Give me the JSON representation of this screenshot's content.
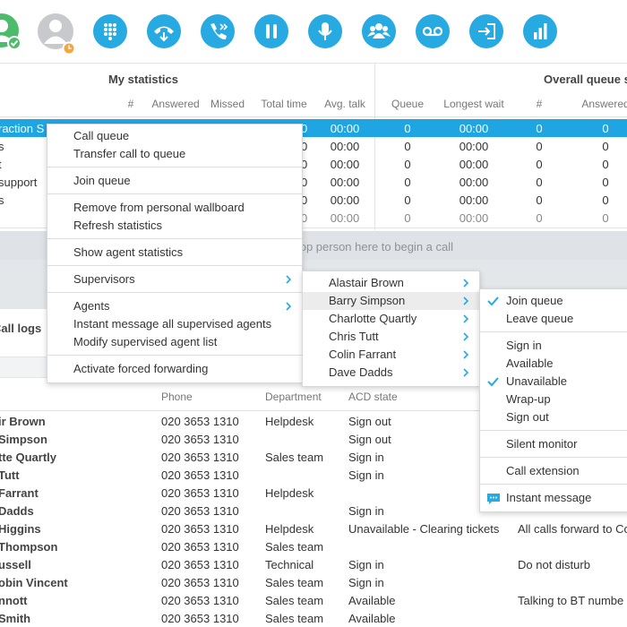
{
  "statistics": {
    "my_title": "My statistics",
    "overall_title": "Overall queue st",
    "columns": [
      "#",
      "Answered",
      "Missed",
      "Total time",
      "Avg. talk",
      "Queue",
      "Longest wait",
      "#",
      "Answered"
    ],
    "rows": [
      {
        "name": "raction S",
        "selected": true,
        "cells": [
          "00:00",
          "00:00",
          "0",
          "00:00",
          "0",
          "0"
        ]
      },
      {
        "name": "s",
        "cells": [
          "00:00",
          "00:00",
          "0",
          "00:00",
          "0",
          "0"
        ]
      },
      {
        "name": "t",
        "cells": [
          "00:00",
          "00:00",
          "0",
          "00:00",
          "0",
          "0"
        ]
      },
      {
        "name": "support",
        "cells": [
          "00:00",
          "00:00",
          "0",
          "00:00",
          "0",
          "0"
        ]
      },
      {
        "name": "s",
        "cells": [
          "00:00",
          "00:00",
          "0",
          "00:00",
          "0",
          "0"
        ]
      },
      {
        "name": null,
        "total": true,
        "cells": [
          "00:00",
          "00:00",
          "0",
          "00:00",
          "0",
          "0"
        ]
      }
    ]
  },
  "drop_zone": "Drop person here to begin a call",
  "call_logs": "Call logs",
  "agents": {
    "columns": [
      "Phone",
      "Department",
      "ACD state"
    ],
    "rows": [
      {
        "name": "ir Brown",
        "phone": "020 3653 1310",
        "department": "Helpdesk",
        "acd": "Sign out",
        "note": null
      },
      {
        "name": "Simpson",
        "phone": "020 3653 1310",
        "department": null,
        "acd": "Sign out",
        "note": null
      },
      {
        "name": "tte Quartly",
        "phone": "020 3653 1310",
        "department": "Sales team",
        "acd": "Sign in",
        "note": null
      },
      {
        "name": "Tutt",
        "phone": "020 3653 1310",
        "department": null,
        "acd": "Sign in",
        "note": null
      },
      {
        "name": "Farrant",
        "phone": "020 3653 1310",
        "department": "Helpdesk",
        "acd": null,
        "note": null
      },
      {
        "name": "Dadds",
        "phone": "020 3653 1310",
        "department": null,
        "acd": "Sign in",
        "note": null
      },
      {
        "name": "Higgins",
        "phone": "020 3653 1310",
        "department": "Helpdesk",
        "acd": "Unavailable - Clearing tickets",
        "note": "All calls forward to Co"
      },
      {
        "name": "Thompson",
        "phone": "020 3653 1310",
        "department": "Sales team",
        "acd": null,
        "note": null
      },
      {
        "name": "ussell",
        "phone": "020 3653 1310",
        "department": "Technical",
        "acd": "Sign in",
        "note": "Do not disturb"
      },
      {
        "name": "obin Vincent",
        "phone": "020 3653 1310",
        "department": "Sales team",
        "acd": "Sign in",
        "note": null
      },
      {
        "name": "nnott",
        "phone": "020 3653 1310",
        "department": "Sales team",
        "acd": "Available",
        "note": "Talking to BT numbe"
      },
      {
        "name": "Smith",
        "phone": "020 3653 1310",
        "department": "Sales team",
        "acd": "Available",
        "note": null
      }
    ]
  },
  "menus": [
    {
      "groups": [
        [
          {
            "label": "Call queue"
          },
          {
            "label": "Transfer call to queue"
          }
        ],
        [
          {
            "label": "Join queue"
          }
        ],
        [
          {
            "label": "Remove from personal wallboard"
          },
          {
            "label": "Refresh statistics"
          }
        ],
        [
          {
            "label": "Show agent statistics"
          }
        ],
        [
          {
            "label": "Supervisors",
            "submenu": true
          }
        ],
        [
          {
            "label": "Agents",
            "submenu": true
          },
          {
            "label": "Instant message all supervised agents"
          },
          {
            "label": "Modify supervised agent list"
          }
        ],
        [
          {
            "label": "Activate forced forwarding"
          }
        ]
      ]
    },
    {
      "groups": [
        [
          {
            "label": "Alastair Brown",
            "submenu": true
          },
          {
            "label": "Barry Simpson",
            "submenu": true,
            "highlighted": true
          },
          {
            "label": "Charlotte Quartly",
            "submenu": true
          },
          {
            "label": "Chris Tutt",
            "submenu": true
          },
          {
            "label": "Colin Farrant",
            "submenu": true
          },
          {
            "label": "Dave Dadds",
            "submenu": true
          }
        ]
      ]
    },
    {
      "groups": [
        [
          {
            "label": "Join queue",
            "checked": true
          },
          {
            "label": "Leave queue"
          }
        ],
        [
          {
            "label": "Sign in"
          },
          {
            "label": "Available"
          },
          {
            "label": "Unavailable",
            "checked": true
          },
          {
            "label": "Wrap-up"
          },
          {
            "label": "Sign out"
          }
        ],
        [
          {
            "label": "Silent monitor"
          }
        ],
        [
          {
            "label": "Call extension"
          }
        ],
        [
          {
            "label": "Instant message",
            "icon": "chat"
          }
        ]
      ]
    }
  ]
}
